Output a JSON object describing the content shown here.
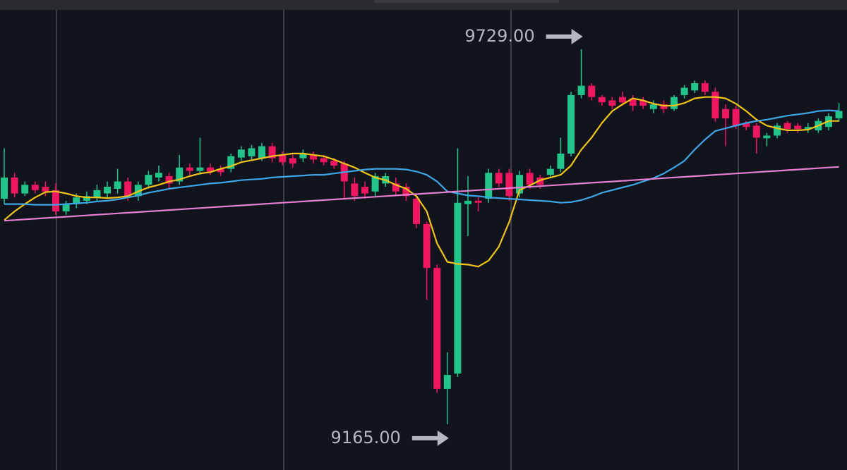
{
  "chart_data": {
    "type": "candlestick",
    "ylim": [
      9096,
      9803
    ],
    "up_color": "#22c48a",
    "down_color": "#ef1760",
    "open": [
      9504,
      9536,
      9512,
      9525,
      9522,
      9517,
      9485,
      9496,
      9501,
      9506,
      9512,
      9519,
      9530,
      9508,
      9525,
      9536,
      9538,
      9530,
      9551,
      9546,
      9551,
      9549,
      9549,
      9566,
      9568,
      9565,
      9583,
      9570,
      9565,
      9565,
      9570,
      9565,
      9561,
      9557,
      9527,
      9522,
      9515,
      9527,
      9527,
      9522,
      9504,
      9466,
      9400,
      9218,
      9241,
      9496,
      9501,
      9504,
      9543,
      9543,
      9512,
      9543,
      9536,
      9540,
      9549,
      9572,
      9660,
      9674,
      9657,
      9652,
      9657,
      9655,
      9652,
      9639,
      9646,
      9639,
      9660,
      9667,
      9678,
      9665,
      9639,
      9639,
      9618,
      9614,
      9595,
      9599,
      9618,
      9614,
      9609,
      9607,
      9612,
      9625
    ],
    "high": [
      9580,
      9543,
      9530,
      9530,
      9530,
      9527,
      9501,
      9512,
      9515,
      9525,
      9530,
      9549,
      9536,
      9530,
      9546,
      9554,
      9543,
      9570,
      9557,
      9596,
      9557,
      9554,
      9572,
      9583,
      9585,
      9588,
      9588,
      9575,
      9570,
      9578,
      9575,
      9570,
      9565,
      9561,
      9536,
      9530,
      9543,
      9543,
      9536,
      9527,
      9508,
      9470,
      9405,
      9273,
      9580,
      9538,
      9506,
      9549,
      9549,
      9549,
      9546,
      9549,
      9540,
      9554,
      9596,
      9665,
      9729,
      9678,
      9660,
      9657,
      9665,
      9660,
      9657,
      9652,
      9652,
      9660,
      9675,
      9682,
      9682,
      9671,
      9646,
      9644,
      9621,
      9618,
      9603,
      9618,
      9621,
      9618,
      9618,
      9625,
      9633,
      9648
    ],
    "low": [
      9496,
      9506,
      9508,
      9512,
      9508,
      9480,
      9480,
      9490,
      9496,
      9501,
      9506,
      9512,
      9501,
      9501,
      9519,
      9530,
      9519,
      9525,
      9540,
      9540,
      9540,
      9538,
      9544,
      9561,
      9563,
      9561,
      9559,
      9554,
      9551,
      9559,
      9557,
      9554,
      9549,
      9504,
      9501,
      9504,
      9508,
      9522,
      9508,
      9501,
      9460,
      9352,
      9212,
      9165,
      9236,
      9448,
      9485,
      9498,
      9522,
      9501,
      9506,
      9519,
      9519,
      9536,
      9544,
      9568,
      9655,
      9652,
      9644,
      9639,
      9644,
      9636,
      9639,
      9633,
      9633,
      9636,
      9655,
      9663,
      9660,
      9620,
      9583,
      9609,
      9607,
      9572,
      9583,
      9595,
      9603,
      9603,
      9603,
      9603,
      9607,
      9620
    ],
    "close": [
      9536,
      9512,
      9525,
      9517,
      9515,
      9485,
      9496,
      9506,
      9508,
      9517,
      9522,
      9530,
      9508,
      9525,
      9540,
      9543,
      9527,
      9551,
      9546,
      9551,
      9545,
      9544,
      9568,
      9578,
      9580,
      9583,
      9565,
      9559,
      9557,
      9572,
      9563,
      9559,
      9554,
      9530,
      9508,
      9512,
      9538,
      9538,
      9515,
      9508,
      9466,
      9400,
      9218,
      9239,
      9498,
      9501,
      9498,
      9543,
      9527,
      9508,
      9540,
      9525,
      9525,
      9549,
      9572,
      9660,
      9674,
      9657,
      9649,
      9644,
      9649,
      9644,
      9644,
      9646,
      9639,
      9657,
      9671,
      9678,
      9665,
      9625,
      9625,
      9614,
      9612,
      9596,
      9599,
      9614,
      9609,
      9609,
      9612,
      9621,
      9628,
      9636
    ],
    "series": [
      {
        "color": "#f0c419",
        "values": [
          9472,
          9485,
          9496,
          9506,
          9514,
          9515,
          9512,
          9508,
          9506,
          9506,
          9505,
          9506,
          9508,
          9515,
          9521,
          9525,
          9530,
          9533,
          9538,
          9542,
          9544,
          9549,
          9553,
          9559,
          9562,
          9565,
          9568,
          9570,
          9572,
          9572,
          9570,
          9568,
          9563,
          9557,
          9551,
          9543,
          9536,
          9532,
          9525,
          9519,
          9508,
          9485,
          9437,
          9409,
          9406,
          9405,
          9402,
          9411,
          9432,
          9469,
          9517,
          9524,
          9532,
          9536,
          9540,
          9554,
          9578,
          9596,
          9618,
          9636,
          9646,
          9655,
          9652,
          9647,
          9644,
          9644,
          9648,
          9655,
          9657,
          9657,
          9655,
          9647,
          9636,
          9623,
          9614,
          9610,
          9607,
          9607,
          9608,
          9614,
          9621,
          9621
        ]
      },
      {
        "color": "#3ea6e4",
        "values": [
          9496,
          9496,
          9496,
          9495,
          9495,
          9495,
          9496,
          9497,
          9498,
          9500,
          9501,
          9503,
          9506,
          9509,
          9513,
          9516,
          9519,
          9521,
          9523,
          9525,
          9527,
          9528,
          9530,
          9532,
          9533,
          9534,
          9536,
          9537,
          9538,
          9539,
          9540,
          9540,
          9542,
          9544,
          9546,
          9548,
          9549,
          9549,
          9549,
          9548,
          9545,
          9540,
          9530,
          9515,
          9512,
          9509,
          9508,
          9506,
          9505,
          9504,
          9503,
          9502,
          9501,
          9500,
          9498,
          9499,
          9502,
          9507,
          9513,
          9517,
          9521,
          9525,
          9530,
          9535,
          9542,
          9551,
          9561,
          9578,
          9593,
          9606,
          9610,
          9614,
          9618,
          9621,
          9623,
          9626,
          9629,
          9631,
          9633,
          9636,
          9637,
          9636
        ]
      },
      {
        "color": "#e47fd2",
        "values": [
          9471,
          9472,
          9473,
          9474,
          9475,
          9476,
          9477,
          9478,
          9479,
          9480,
          9481,
          9482,
          9483,
          9484,
          9485,
          9486,
          9487,
          9488,
          9489,
          9490,
          9491,
          9492,
          9493,
          9494,
          9495,
          9496,
          9497,
          9498,
          9499,
          9500,
          9501,
          9502,
          9503,
          9504,
          9505,
          9506,
          9507,
          9508,
          9509,
          9510,
          9511,
          9512,
          9513,
          9514,
          9515,
          9516,
          9517,
          9518,
          9519,
          9520,
          9521,
          9522,
          9523,
          9524,
          9525,
          9526,
          9527,
          9528,
          9529,
          9530,
          9531,
          9532,
          9533,
          9534,
          9535,
          9536,
          9537,
          9538,
          9539,
          9540,
          9541,
          9542,
          9543,
          9544,
          9545,
          9546,
          9547,
          9548,
          9549,
          9550,
          9551,
          9552
        ]
      }
    ],
    "annotations": [
      {
        "value": 9729,
        "label": "9729.00"
      },
      {
        "value": 9165,
        "label": "9165.00"
      }
    ]
  }
}
